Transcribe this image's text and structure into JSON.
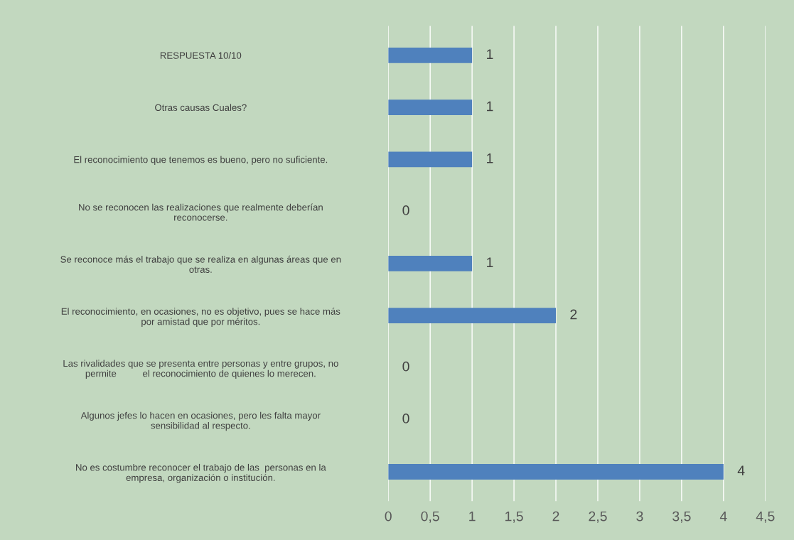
{
  "chart_data": {
    "type": "bar",
    "orientation": "horizontal",
    "categories": [
      "RESPUESTA 10/10",
      "Otras causas Cuales?",
      "El reconocimiento que tenemos es bueno, pero no suficiente.",
      "No se reconocen las realizaciones que realmente deberían\nreconocerse.",
      "Se reconoce más el trabajo que se realiza en algunas áreas que en\notras.",
      "El reconocimiento, en ocasiones, no es objetivo, pues se hace más\npor amistad que por méritos.",
      "Las rivalidades que se presenta entre personas y entre grupos, no\npermite          el reconocimiento de quienes lo merecen.",
      "Algunos jefes lo hacen en ocasiones, pero les falta mayor\nsensibilidad al respecto.",
      "No es costumbre reconocer el trabajo de las  personas en la\nempresa, organización o institución."
    ],
    "values": [
      1,
      1,
      1,
      0,
      1,
      2,
      0,
      0,
      4
    ],
    "color": "#4f81bd",
    "xlim": [
      0,
      4.5
    ],
    "xticks": [
      0,
      {
        "value": 0.5,
        "label": "0,5"
      },
      1,
      {
        "value": 1.5,
        "label": "1,5"
      },
      2,
      {
        "value": 2.5,
        "label": "2,5"
      },
      3,
      {
        "value": 3.5,
        "label": "3,5"
      },
      4,
      {
        "value": 4.5,
        "label": "4,5"
      }
    ],
    "grid": "x",
    "data_labels": true
  }
}
